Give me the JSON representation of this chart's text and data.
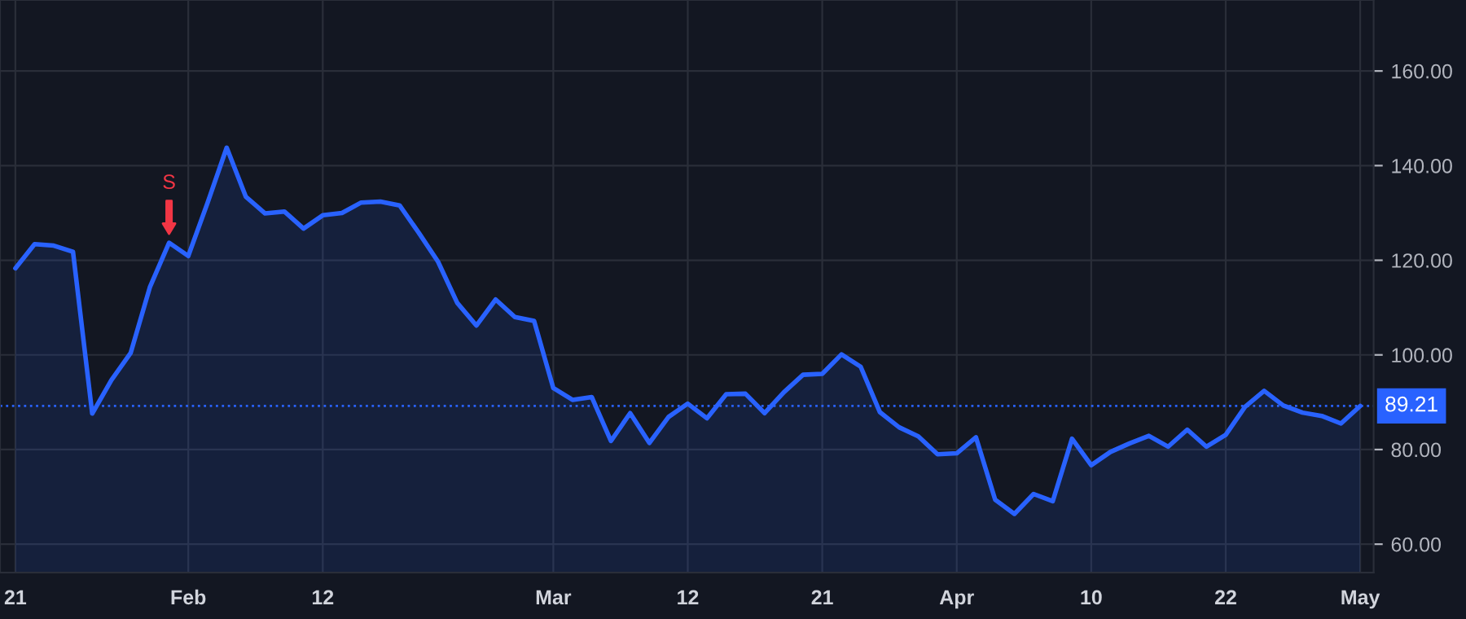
{
  "chart_data": {
    "type": "area",
    "categories": [
      "21",
      null,
      null,
      null,
      null,
      null,
      null,
      null,
      null,
      "Feb",
      null,
      null,
      null,
      null,
      null,
      null,
      "12",
      null,
      null,
      null,
      null,
      null,
      null,
      null,
      null,
      null,
      null,
      null,
      "Mar",
      null,
      null,
      null,
      null,
      null,
      null,
      "12",
      null,
      null,
      null,
      null,
      null,
      null,
      "21",
      null,
      null,
      null,
      null,
      null,
      null,
      "Apr",
      null,
      null,
      null,
      null,
      null,
      null,
      "10",
      null,
      null,
      null,
      null,
      null,
      null,
      "22",
      null,
      null,
      null,
      null,
      null,
      null,
      "May"
    ],
    "series": [
      {
        "color": "#2962ff",
        "values": [
          118.3,
          123.4,
          123.1,
          121.8,
          87.6,
          94.7,
          100.4,
          114.3,
          123.7,
          120.9,
          132.1,
          143.8,
          133.4,
          129.9,
          130.3,
          126.7,
          129.5,
          130.0,
          132.2,
          132.4,
          131.6,
          125.8,
          119.7,
          111.0,
          106.2,
          111.7,
          108.0,
          107.2,
          93.0,
          90.5,
          91.1,
          81.8,
          87.7,
          81.4,
          86.9,
          89.7,
          86.6,
          91.7,
          91.8,
          87.7,
          92.1,
          95.8,
          96.0,
          100.1,
          97.5,
          87.9,
          84.7,
          82.8,
          79.0,
          79.2,
          82.6,
          69.4,
          66.4,
          70.6,
          69.1,
          82.3,
          76.7,
          79.5,
          81.3,
          82.9,
          80.6,
          84.2,
          80.6,
          83.1,
          89.0,
          92.4,
          89.3,
          87.8,
          87.1,
          85.5,
          89.21
        ]
      }
    ],
    "ylim": [
      54,
      175
    ],
    "yticks": [
      {
        "value": 60,
        "label": "60.00"
      },
      {
        "value": 80,
        "label": "80.00"
      },
      {
        "value": 100,
        "label": "100.00"
      },
      {
        "value": 120,
        "label": "120.00"
      },
      {
        "value": 140,
        "label": "140.00"
      },
      {
        "value": 160,
        "label": "160.00"
      }
    ],
    "grid": true,
    "line_style": "solid",
    "ref_lines": [
      {
        "axis": "y",
        "value": 89.21,
        "label": "89.21",
        "color": "#2962ff",
        "line_style": "dotted"
      }
    ],
    "annotations": [
      {
        "text": "S",
        "y": 123.7
      }
    ]
  }
}
